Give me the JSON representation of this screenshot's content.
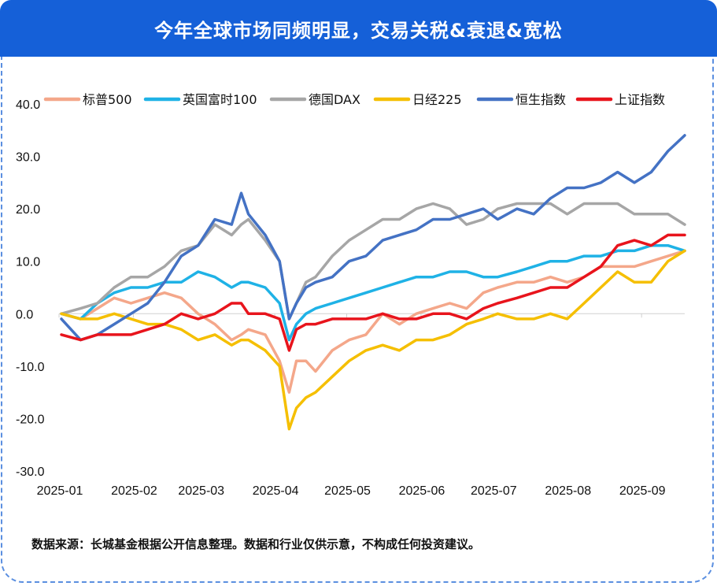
{
  "header": {
    "title": "今年全球市场同频明显，交易关税&衰退&宽松"
  },
  "footer": {
    "note": "数据来源：长城基金根据公开信息整理。数据和行业仅供示意，不构成任何投资建议。"
  },
  "chart_data": {
    "type": "line",
    "title": "",
    "xlabel": "",
    "ylabel": "",
    "ylim": [
      -30,
      40
    ],
    "yticks": [
      "40.0",
      "30.0",
      "20.0",
      "10.0",
      "0.0",
      "-10.0",
      "-20.0",
      "-30.0"
    ],
    "ytick_values": [
      40,
      30,
      20,
      10,
      0,
      -10,
      -20,
      -30
    ],
    "xticks": [
      "2025-01",
      "2025-02",
      "2025-03",
      "2025-04",
      "2025-05",
      "2025-06",
      "2025-07",
      "2025-08",
      "2025-09"
    ],
    "legend_position": "top",
    "grid": false,
    "x": [
      "2025-01-02",
      "2025-01-10",
      "2025-01-17",
      "2025-01-24",
      "2025-01-31",
      "2025-02-07",
      "2025-02-14",
      "2025-02-21",
      "2025-02-28",
      "2025-03-07",
      "2025-03-14",
      "2025-03-18",
      "2025-03-21",
      "2025-03-28",
      "2025-04-03",
      "2025-04-07",
      "2025-04-10",
      "2025-04-14",
      "2025-04-18",
      "2025-04-25",
      "2025-05-02",
      "2025-05-09",
      "2025-05-16",
      "2025-05-23",
      "2025-05-30",
      "2025-06-06",
      "2025-06-13",
      "2025-06-20",
      "2025-06-27",
      "2025-07-03",
      "2025-07-11",
      "2025-07-18",
      "2025-07-25",
      "2025-08-01",
      "2025-08-08",
      "2025-08-15",
      "2025-08-22",
      "2025-08-29",
      "2025-09-05",
      "2025-09-12",
      "2025-09-19"
    ],
    "series": [
      {
        "name": "标普500",
        "color": "#f4a78a",
        "values": [
          0,
          -1,
          1,
          3,
          2,
          3,
          4,
          3,
          0,
          -2,
          -5,
          -4,
          -3,
          -4,
          -9,
          -15,
          -9,
          -9,
          -11,
          -7,
          -5,
          -4,
          0,
          -2,
          0,
          1,
          2,
          1,
          4,
          5,
          6,
          6,
          7,
          6,
          7,
          9,
          9,
          9,
          10,
          11,
          12
        ]
      },
      {
        "name": "英国富时100",
        "color": "#1fb2e6",
        "values": [
          0,
          -1,
          2,
          4,
          5,
          5,
          6,
          6,
          8,
          7,
          5,
          6,
          6,
          5,
          2,
          -5,
          -2,
          0,
          1,
          2,
          3,
          4,
          5,
          6,
          7,
          7,
          8,
          8,
          7,
          7,
          8,
          9,
          10,
          10,
          11,
          11,
          12,
          12,
          13,
          13,
          12
        ]
      },
      {
        "name": "德国DAX",
        "color": "#a6a6a6",
        "values": [
          0,
          1,
          2,
          5,
          7,
          7,
          9,
          12,
          13,
          17,
          15,
          17,
          18,
          14,
          10,
          -1,
          2,
          6,
          7,
          11,
          14,
          16,
          18,
          18,
          20,
          21,
          20,
          17,
          18,
          20,
          21,
          21,
          21,
          19,
          21,
          21,
          21,
          19,
          19,
          19,
          17
        ]
      },
      {
        "name": "日经225",
        "color": "#f5bf00",
        "values": [
          0,
          -1,
          -1,
          0,
          -1,
          -2,
          -2,
          -3,
          -5,
          -4,
          -6,
          -5,
          -5,
          -7,
          -10,
          -22,
          -18,
          -16,
          -15,
          -12,
          -9,
          -7,
          -6,
          -7,
          -5,
          -5,
          -4,
          -2,
          -1,
          0,
          -1,
          -1,
          0,
          -1,
          2,
          5,
          8,
          6,
          6,
          10,
          12
        ]
      },
      {
        "name": "恒生指数",
        "color": "#4472c4",
        "values": [
          -1,
          -5,
          -4,
          -2,
          0,
          2,
          6,
          11,
          13,
          18,
          17,
          23,
          19,
          15,
          10,
          -1,
          2,
          5,
          6,
          7,
          10,
          11,
          14,
          15,
          16,
          18,
          18,
          19,
          20,
          18,
          20,
          19,
          22,
          24,
          24,
          25,
          27,
          25,
          27,
          31,
          34
        ]
      },
      {
        "name": "上证指数",
        "color": "#e8141c",
        "values": [
          -4,
          -5,
          -4,
          -4,
          -4,
          -3,
          -2,
          0,
          -1,
          0,
          2,
          2,
          0,
          0,
          -1,
          -7,
          -3,
          -2,
          -2,
          -1,
          -1,
          -1,
          0,
          -1,
          -1,
          0,
          0,
          -1,
          1,
          2,
          3,
          4,
          5,
          5,
          7,
          9,
          13,
          14,
          13,
          15,
          15
        ]
      }
    ]
  }
}
